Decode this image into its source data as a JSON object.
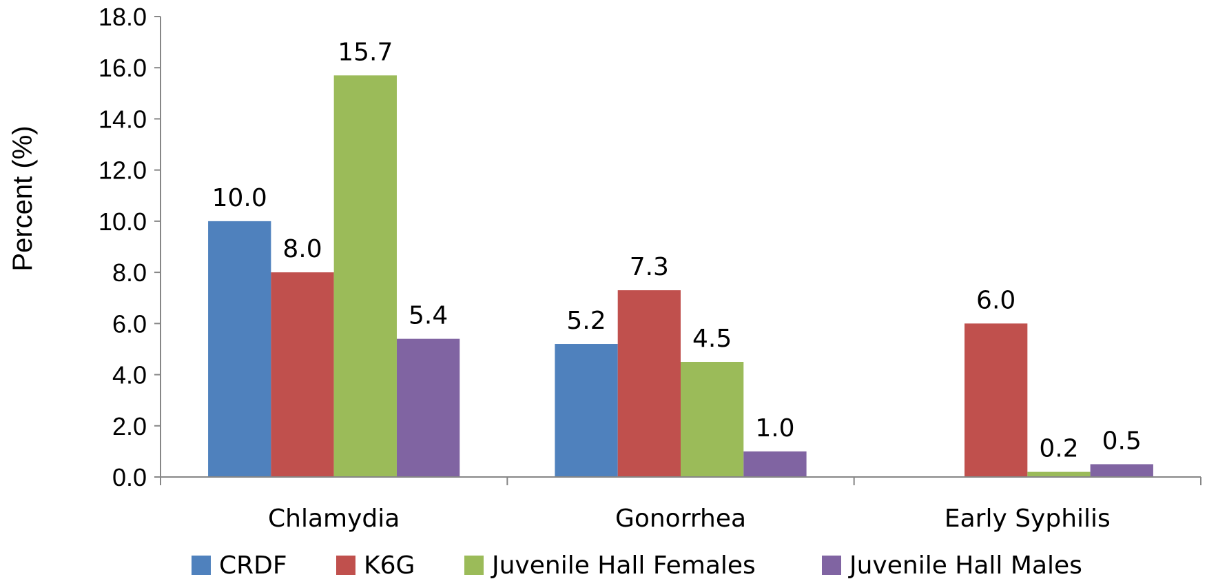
{
  "chart_data": {
    "type": "bar",
    "title": "",
    "xlabel": "",
    "ylabel": "Percent (%)",
    "ylim": [
      0,
      18
    ],
    "ytick_step": 2,
    "ytick_labels": [
      "0.0",
      "2.0",
      "4.0",
      "6.0",
      "8.0",
      "10.0",
      "12.0",
      "14.0",
      "16.0",
      "18.0"
    ],
    "grid": false,
    "legend_position": "bottom",
    "categories": [
      "Chlamydia",
      "Gonorrhea",
      "Early Syphilis"
    ],
    "series": [
      {
        "name": "CRDF",
        "color": "#4F81BD",
        "values": [
          10.0,
          5.2,
          null
        ],
        "labels": [
          "10.0",
          "5.2",
          ""
        ]
      },
      {
        "name": "K6G",
        "color": "#C0504D",
        "values": [
          8.0,
          7.3,
          6.0
        ],
        "labels": [
          "8.0",
          "7.3",
          "6.0"
        ]
      },
      {
        "name": "Juvenile Hall Females",
        "color": "#9BBB59",
        "values": [
          15.7,
          4.5,
          0.2
        ],
        "labels": [
          "15.7",
          "4.5",
          "0.2"
        ]
      },
      {
        "name": "Juvenile Hall Males",
        "color": "#8064A2",
        "values": [
          5.4,
          1.0,
          0.5
        ],
        "labels": [
          "5.4",
          "1.0",
          "0.5"
        ]
      }
    ]
  }
}
